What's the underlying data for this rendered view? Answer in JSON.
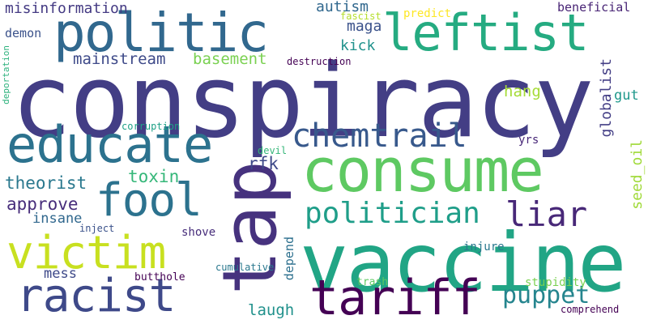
{
  "word_cloud": {
    "words": [
      {
        "text": "conspiracy",
        "color": "#433e85"
      },
      {
        "text": "vaccine",
        "color": "#21a585"
      },
      {
        "text": "consume",
        "color": "#5ec962"
      },
      {
        "text": "politic",
        "color": "#31688e"
      },
      {
        "text": "leftist",
        "color": "#25ab81"
      },
      {
        "text": "tap",
        "color": "#46327e"
      },
      {
        "text": "educate",
        "color": "#2c728e"
      },
      {
        "text": "fool",
        "color": "#2c728e"
      },
      {
        "text": "victim",
        "color": "#c8e020"
      },
      {
        "text": "racist",
        "color": "#3e4989"
      },
      {
        "text": "tariff",
        "color": "#440154"
      },
      {
        "text": "chemtrail",
        "color": "#38598c"
      },
      {
        "text": "politician",
        "color": "#1f9e89"
      },
      {
        "text": "liar",
        "color": "#482878"
      },
      {
        "text": "puppet",
        "color": "#25858e"
      },
      {
        "text": "misinformation",
        "color": "#443a83"
      },
      {
        "text": "mainstream",
        "color": "#3e4a89"
      },
      {
        "text": "basement",
        "color": "#7ad151"
      },
      {
        "text": "theorist",
        "color": "#2a788e"
      },
      {
        "text": "approve",
        "color": "#472d7b"
      },
      {
        "text": "toxin",
        "color": "#35b779"
      },
      {
        "text": "autism",
        "color": "#31688e"
      },
      {
        "text": "maga",
        "color": "#3b528b"
      },
      {
        "text": "kick",
        "color": "#20928c"
      },
      {
        "text": "rfk",
        "color": "#3e4989"
      },
      {
        "text": "insane",
        "color": "#31688e"
      },
      {
        "text": "globalist",
        "color": "#433e85"
      },
      {
        "text": "seed_oil",
        "color": "#a0da39"
      },
      {
        "text": "hang",
        "color": "#a5db36"
      },
      {
        "text": "gut",
        "color": "#1f988b"
      },
      {
        "text": "laugh",
        "color": "#21918c"
      },
      {
        "text": "depend",
        "color": "#2d708e"
      },
      {
        "text": "mess",
        "color": "#3e4989"
      },
      {
        "text": "demon",
        "color": "#3b528b"
      },
      {
        "text": "deportation",
        "color": "#2db27d"
      },
      {
        "text": "corruption",
        "color": "#1fa187"
      },
      {
        "text": "destruction",
        "color": "#440154"
      },
      {
        "text": "devil",
        "color": "#35b779"
      },
      {
        "text": "fascist",
        "color": "#b5de2b"
      },
      {
        "text": "predict",
        "color": "#fde725"
      },
      {
        "text": "beneficial",
        "color": "#482475"
      },
      {
        "text": "yrs",
        "color": "#482878"
      },
      {
        "text": "shove",
        "color": "#472d7b"
      },
      {
        "text": "inject",
        "color": "#3b528b"
      },
      {
        "text": "injure",
        "color": "#2a788e"
      },
      {
        "text": "cumulative",
        "color": "#2a788e"
      },
      {
        "text": "butthole",
        "color": "#440154"
      },
      {
        "text": "trash",
        "color": "#5ec962"
      },
      {
        "text": "stupidity",
        "color": "#7ad151"
      },
      {
        "text": "comprehend",
        "color": "#440154"
      }
    ]
  }
}
